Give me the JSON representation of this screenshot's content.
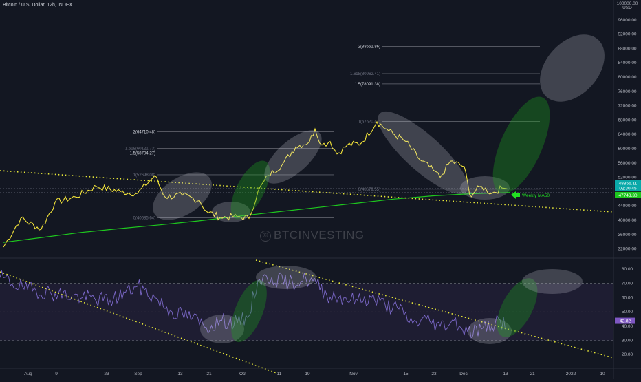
{
  "header": {
    "title": "Bitcoin / U.S. Dollar, 12h, INDEX"
  },
  "watermark": "BTCINVESTING",
  "price_axis": {
    "unit_top": "100000.00",
    "unit_label": "USD",
    "ticks": [
      "96000.00",
      "92000.00",
      "88000.00",
      "84000.00",
      "80000.00",
      "76000.00",
      "72000.00",
      "68000.00",
      "64000.00",
      "60000.00",
      "56000.00",
      "52000.00",
      "44000.00",
      "40000.00",
      "36000.00",
      "32000.00"
    ],
    "last_price": "48856.11",
    "countdown": "02:30:45",
    "ma_value": "47743.30"
  },
  "rsi_axis": {
    "ticks": [
      "80.00",
      "70.00",
      "60.00",
      "50.00",
      "40.00",
      "30.00",
      "20.00"
    ],
    "rsi_value": "42.82"
  },
  "time_axis": {
    "labels": [
      "Aug",
      "9",
      "23",
      "Sep",
      "13",
      "21",
      "Oct",
      "11",
      "19",
      "Nov",
      "15",
      "23",
      "Dec",
      "13",
      "21",
      "2022",
      "10"
    ]
  },
  "fib_labels": {
    "left_2": "2(64710.48)",
    "left_1618": "1.618(60121.73)",
    "left_15": "1.5(58704.27)",
    "left_1": "1(52698.08)",
    "left_0": "0(40685.64)",
    "right_2": "2(88561.86)",
    "right_1618": "1.618(80962.41)",
    "right_15": "1.5(78091.38)",
    "right_1": "1(67620.41)",
    "right_0": "0(48679.55)"
  },
  "annotation": "Weekly MA50",
  "colors": {
    "price": "#f5e63a",
    "ma": "#1ec81e",
    "rsi": "#7b68c8",
    "trend": "#e8e838",
    "annotation": "#22e022",
    "bg": "#131722"
  },
  "chart_data": [
    {
      "type": "line",
      "title": "Bitcoin / U.S. Dollar, 12h, INDEX",
      "xlabel": "",
      "ylabel": "USD",
      "x": [
        "Aug",
        "9",
        "23",
        "Sep",
        "13",
        "21",
        "Oct",
        "11",
        "19",
        "Nov",
        "15",
        "23",
        "Dec",
        "13"
      ],
      "series": [
        {
          "name": "",
          "values": [
            39500,
            43500,
            48500,
            49500,
            47000,
            42500,
            43500,
            57000,
            61500,
            62000,
            63500,
            60000,
            57000,
            48800
          ]
        },
        {
          "name": "Weekly MA50",
          "values": [
            33800,
            35200,
            36600,
            37700,
            38700,
            39800,
            41100,
            42300,
            43500,
            44700,
            45900,
            46800,
            47400,
            47750
          ]
        }
      ],
      "ylim": [
        30000,
        100000
      ],
      "log_scale": false,
      "grid": false
    },
    {
      "type": "line",
      "x": [
        "Aug",
        "9",
        "23",
        "Sep",
        "13",
        "21",
        "Oct",
        "11",
        "19",
        "Nov",
        "15",
        "23",
        "Dec",
        "13"
      ],
      "series": [
        {
          "name": "",
          "values": [
            73,
            67,
            62,
            64,
            52,
            45,
            44,
            72,
            70,
            66,
            55,
            45,
            38,
            43
          ]
        }
      ],
      "ylim": [
        15,
        85
      ],
      "bands": [
        30,
        70
      ],
      "grid": false
    }
  ]
}
